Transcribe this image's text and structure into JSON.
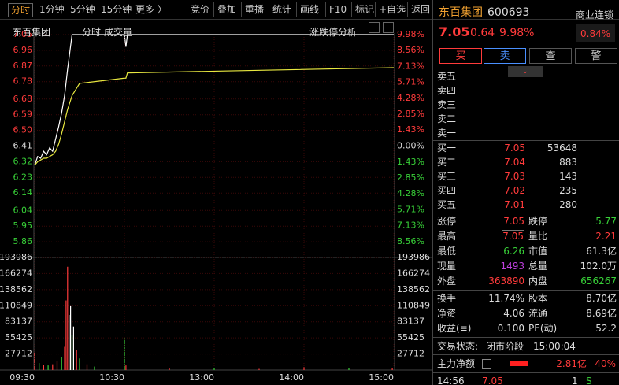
{
  "toolbar": {
    "periods": [
      "分时",
      "1分钟",
      "5分钟",
      "15分钟",
      "更多 〉"
    ],
    "tools": [
      "竞价",
      "叠加",
      "重播",
      "统计",
      "画线",
      "F10",
      "标记",
      "+自选",
      "返回"
    ]
  },
  "chart_header": {
    "name": "东百集团",
    "period": "分时",
    "indicator": "成交量",
    "analysis": "涨跌停分析"
  },
  "chart_data": [
    {
      "type": "line",
      "xlim": [
        0,
        240
      ],
      "x": [
        0,
        2,
        4,
        6,
        8,
        10,
        12,
        14,
        16,
        18,
        20,
        22,
        25,
        30,
        60,
        61,
        62,
        120,
        240
      ],
      "series": [
        {
          "color": "#ffffff",
          "values": [
            6.3,
            6.35,
            6.34,
            6.38,
            6.36,
            6.4,
            6.38,
            6.45,
            6.52,
            6.6,
            6.7,
            6.85,
            7.05,
            7.05,
            7.05,
            6.98,
            7.05,
            7.05,
            7.05
          ]
        },
        {
          "color": "#e8e840",
          "values": [
            6.3,
            6.32,
            6.33,
            6.34,
            6.34,
            6.35,
            6.36,
            6.38,
            6.42,
            6.48,
            6.55,
            6.62,
            6.7,
            6.77,
            6.8,
            6.8,
            6.83,
            6.84,
            6.86
          ]
        }
      ],
      "ylim": [
        5.77,
        7.05
      ],
      "yticks": [
        7.05,
        6.96,
        6.87,
        6.78,
        6.68,
        6.59,
        {
          "value": 6.5,
          "label": "6.50"
        },
        6.41,
        6.32,
        6.23,
        6.14,
        6.04,
        5.95,
        5.86
      ],
      "y2lim": [
        -9.98,
        9.98
      ],
      "y2ticks": [
        {
          "value": 9.98,
          "label": "9.98%"
        },
        {
          "value": 8.56,
          "label": "8.56%"
        },
        {
          "value": 7.13,
          "label": "7.13%"
        },
        {
          "value": 5.71,
          "label": "5.71%"
        },
        {
          "value": 4.28,
          "label": "4.28%"
        },
        {
          "value": 2.85,
          "label": "2.85%"
        },
        {
          "value": 1.43,
          "label": "1.43%"
        },
        {
          "value": 0,
          "label": "0.00%"
        },
        {
          "value": -1.43,
          "label": "1.43%"
        },
        {
          "value": -2.85,
          "label": "2.85%"
        },
        {
          "value": -4.28,
          "label": "4.28%"
        },
        {
          "value": -5.71,
          "label": "5.71%"
        },
        {
          "value": -7.13,
          "label": "7.13%"
        },
        {
          "value": -8.56,
          "label": "8.56%"
        }
      ],
      "grid": true
    },
    {
      "type": "bar",
      "xlim": [
        0,
        240
      ],
      "x": [
        0,
        3,
        6,
        9,
        12,
        15,
        18,
        20,
        21,
        22,
        23,
        24,
        25,
        26,
        28,
        30,
        35,
        40,
        60,
        61,
        90,
        120,
        150,
        180,
        210,
        239
      ],
      "values": [
        30000,
        12000,
        9000,
        8000,
        10000,
        15000,
        22000,
        40000,
        120000,
        178000,
        95000,
        110000,
        60000,
        75000,
        35000,
        20000,
        10000,
        6000,
        55000,
        8000,
        4000,
        3000,
        2000,
        5000,
        3000,
        4000
      ],
      "colors": [
        "#ff3b3b",
        "#38d038",
        "#ff3b3b",
        "#38d038",
        "#ff3b3b",
        "#ff3b3b",
        "#38d038",
        "#ff3b3b",
        "#ff3b3b",
        "#ff3b3b",
        "#ffffff",
        "#ffffff",
        "#38d038",
        "#ffffff",
        "#ff3b3b",
        "#38d038",
        "#ff3b3b",
        "#38d038",
        "#38d038",
        "#ff3b3b",
        "#ff3b3b",
        "#38d038",
        "#ff3b3b",
        "#ff3b3b",
        "#38d038",
        "#ff3b3b"
      ],
      "ylim": [
        0,
        193986
      ],
      "yticks": [
        193986,
        166274,
        138562,
        110849,
        83137,
        55425,
        27712
      ],
      "xticks": [
        {
          "value": 0,
          "label": "09:30"
        },
        {
          "value": 60,
          "label": "10:30"
        },
        {
          "value": 120,
          "label": "13:00"
        },
        {
          "value": 180,
          "label": "14:00"
        },
        {
          "value": 240,
          "label": "15:00"
        }
      ],
      "grid": true
    }
  ],
  "quote": {
    "name": "东百集团",
    "code": "600693",
    "sector": "商业连锁",
    "price": "7.05",
    "change": "0.64",
    "change_pct": "9.98%",
    "sector_pct": "0.84%"
  },
  "buttons": [
    "买",
    "卖",
    "查",
    "警"
  ],
  "asks": [
    "卖五",
    "卖四",
    "卖三",
    "卖二",
    "卖一"
  ],
  "bids": [
    [
      "买一",
      "7.05",
      "53648"
    ],
    [
      "买二",
      "7.04",
      "883"
    ],
    [
      "买三",
      "7.03",
      "143"
    ],
    [
      "买四",
      "7.02",
      "235"
    ],
    [
      "买五",
      "7.01",
      "280"
    ]
  ],
  "stats": [
    [
      "涨停",
      "7.05",
      "跌停",
      "5.77"
    ],
    [
      "最高",
      "7.05",
      "量比",
      "2.21"
    ],
    [
      "最低",
      "6.26",
      "市值",
      "61.3亿"
    ],
    [
      "现量",
      "1493",
      "总量",
      "102.0万"
    ],
    [
      "外盘",
      "363890",
      "内盘",
      "656267"
    ],
    [
      "换手",
      "11.74%",
      "股本",
      "8.70亿"
    ],
    [
      "净资",
      "4.06",
      "流通",
      "8.69亿"
    ],
    [
      "收益(≡)",
      "0.100",
      "PE(动)",
      "52.2"
    ]
  ],
  "stats_colors": [
    [
      "#ff3b3b",
      "#38d038"
    ],
    [
      "#ff3b3b",
      "#ff3b3b"
    ],
    [
      "#38d038",
      "#dddddd"
    ],
    [
      "#c040e0",
      "#dddddd"
    ],
    [
      "#ff3b3b",
      "#38d038"
    ],
    [
      "#dddddd",
      "#dddddd"
    ],
    [
      "#dddddd",
      "#dddddd"
    ],
    [
      "#dddddd",
      "#dddddd"
    ]
  ],
  "status": {
    "label": "交易状态:",
    "phase": "闭市阶段",
    "time": "15:00:04"
  },
  "flow": {
    "label": "主力净额",
    "amount": "2.81亿",
    "pct": "40%"
  },
  "last_trade": [
    "14:56",
    "7.05",
    "1",
    "S"
  ]
}
